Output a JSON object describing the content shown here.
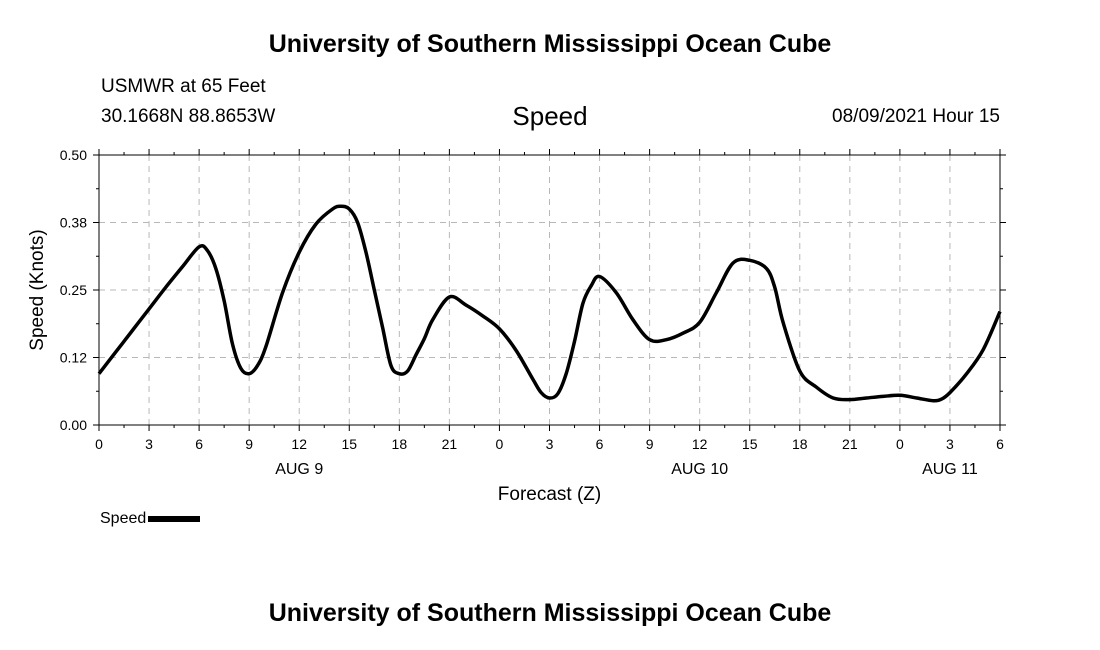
{
  "header": {
    "title": "University of Southern Mississippi Ocean Cube",
    "station": "USMWR at 65 Feet",
    "coordinates": "30.1668N  88.8653W",
    "chart_title": "Speed",
    "datetime": "08/09/2021 Hour 15"
  },
  "footer": {
    "title": "University of Southern Mississippi Ocean Cube"
  },
  "legend": {
    "label": "Speed"
  },
  "chart_data": {
    "type": "line",
    "title": "Speed",
    "xlabel": "Forecast (Z)",
    "ylabel": "Speed (Knots)",
    "ylim": [
      0,
      0.5
    ],
    "xlim": [
      0,
      54
    ],
    "yticks": [
      "0.00",
      "0.12",
      "0.25",
      "0.38",
      "0.50"
    ],
    "xticks": [
      "0",
      "3",
      "6",
      "9",
      "12",
      "15",
      "18",
      "21",
      "0",
      "3",
      "6",
      "9",
      "12",
      "15",
      "18",
      "21",
      "0",
      "3",
      "6"
    ],
    "date_labels": [
      {
        "label": "AUG 9",
        "x": 12
      },
      {
        "label": "AUG 10",
        "x": 36
      },
      {
        "label": "AUG 11",
        "x": 51
      }
    ],
    "grid": true,
    "series": [
      {
        "name": "Speed",
        "color": "#000000",
        "x": [
          0,
          1,
          2,
          3,
          4,
          5,
          6,
          6.5,
          7,
          7.5,
          8,
          8.5,
          9,
          9.5,
          10,
          11,
          12,
          13,
          14,
          14.5,
          15,
          15.5,
          16,
          16.5,
          17,
          17.5,
          18,
          18.5,
          19,
          19.5,
          20,
          21,
          22,
          23,
          24,
          25,
          26,
          26.5,
          27,
          27.5,
          28,
          28.5,
          29,
          29.5,
          30,
          31,
          32,
          33,
          34,
          35,
          36,
          37,
          38,
          39,
          40,
          40.5,
          41,
          42,
          43,
          44,
          45,
          46,
          47,
          48,
          49,
          50,
          50.5,
          51,
          52,
          53,
          54
        ],
        "values": [
          0.095,
          0.135,
          0.175,
          0.215,
          0.255,
          0.293,
          0.33,
          0.323,
          0.29,
          0.23,
          0.15,
          0.105,
          0.095,
          0.11,
          0.145,
          0.245,
          0.32,
          0.372,
          0.4,
          0.405,
          0.4,
          0.375,
          0.32,
          0.25,
          0.18,
          0.11,
          0.095,
          0.1,
          0.13,
          0.16,
          0.195,
          0.237,
          0.222,
          0.202,
          0.178,
          0.138,
          0.085,
          0.06,
          0.05,
          0.058,
          0.095,
          0.155,
          0.225,
          0.258,
          0.275,
          0.245,
          0.195,
          0.158,
          0.158,
          0.17,
          0.19,
          0.245,
          0.3,
          0.305,
          0.29,
          0.255,
          0.19,
          0.1,
          0.07,
          0.05,
          0.047,
          0.05,
          0.053,
          0.055,
          0.05,
          0.045,
          0.048,
          0.06,
          0.095,
          0.14,
          0.21
        ]
      }
    ]
  }
}
